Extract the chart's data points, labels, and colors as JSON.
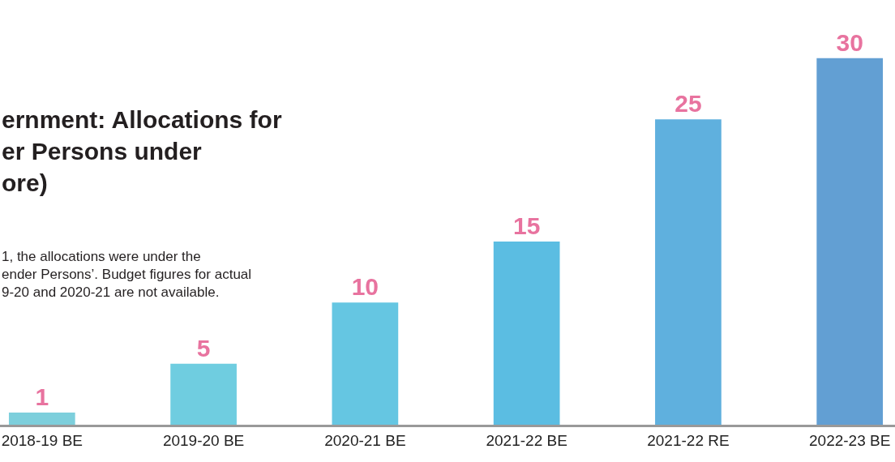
{
  "chart_data": {
    "type": "bar",
    "title": "ernment: Allocations for\ner Persons under\nore)",
    "subtitle": "1, the allocations were under the\nender Persons’. Budget figures for actual\n9-20 and 2020-21 are not available.",
    "categories": [
      "2018-19 BE",
      "2019-20 BE",
      "2020-21 BE",
      "2021-22 BE",
      "2021-22 RE",
      "2022-23 BE"
    ],
    "values": [
      1,
      5,
      10,
      15,
      25,
      30
    ],
    "colors": [
      "#7dcfdc",
      "#6fcde0",
      "#65c6e2",
      "#5bbde2",
      "#5fb0de",
      "#629fd3"
    ],
    "data_labels": true
  }
}
